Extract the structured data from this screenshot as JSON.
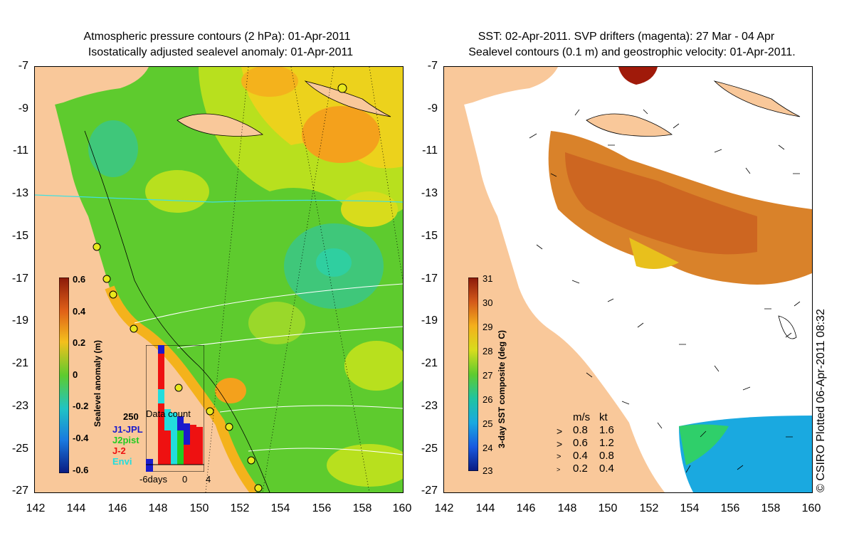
{
  "left_panel": {
    "title_line1": "Atmospheric pressure contours (2 hPa): 01-Apr-2011",
    "title_line2": "Isostatically adjusted sealevel anomaly: 01-Apr-2011",
    "colorbar": {
      "title": "Sealevel anomaly (m)",
      "ticks": [
        "0.6",
        "0.4",
        "0.2",
        "0",
        "-0.2",
        "-0.4",
        "-0.6"
      ]
    },
    "inset": {
      "top_label": "250",
      "title": "Data count",
      "satellites": [
        {
          "name": "J1-JPL",
          "color": "#1a1acc"
        },
        {
          "name": "J2pist",
          "color": "#22cc22"
        },
        {
          "name": "J-2",
          "color": "#ee1111"
        },
        {
          "name": "Envi",
          "color": "#22dddd"
        }
      ],
      "x_ticks": [
        "-6days",
        "0",
        "4"
      ]
    }
  },
  "right_panel": {
    "title_line1": "SST: 02-Apr-2011. SVP drifters (magenta): 27 Mar - 04 Apr",
    "title_line2": "Sealevel contours (0.1 m) and geostrophic velocity: 01-Apr-2011.",
    "colorbar": {
      "title": "3-day SST composite (deg C)",
      "ticks": [
        "31",
        "30",
        "29",
        "28",
        "27",
        "26",
        "25",
        "24",
        "23"
      ]
    },
    "velocity_legend": {
      "header_ms": "m/s",
      "header_kt": "kt",
      "rows": [
        {
          "ms": "0.8",
          "kt": "1.6"
        },
        {
          "ms": "0.6",
          "kt": "1.2"
        },
        {
          "ms": "0.4",
          "kt": "0.8"
        },
        {
          "ms": "0.2",
          "kt": "0.4"
        }
      ]
    }
  },
  "axes": {
    "y_ticks": [
      "-7",
      "-9",
      "-11",
      "-13",
      "-15",
      "-17",
      "-19",
      "-21",
      "-23",
      "-25",
      "-27"
    ],
    "x_ticks": [
      "142",
      "144",
      "146",
      "148",
      "150",
      "152",
      "154",
      "156",
      "158",
      "160"
    ]
  },
  "copyright": "© CSIRO Plotted 06-Apr-2011 08:32",
  "colors": {
    "land": "#f9c89a",
    "ocean_green": "#5ecb2e",
    "ocean_teal": "#2fcfa0",
    "anomaly_orange": "#f4a11c",
    "sst_orange": "#d9822a",
    "sst_blue": "#1aa9e0"
  }
}
